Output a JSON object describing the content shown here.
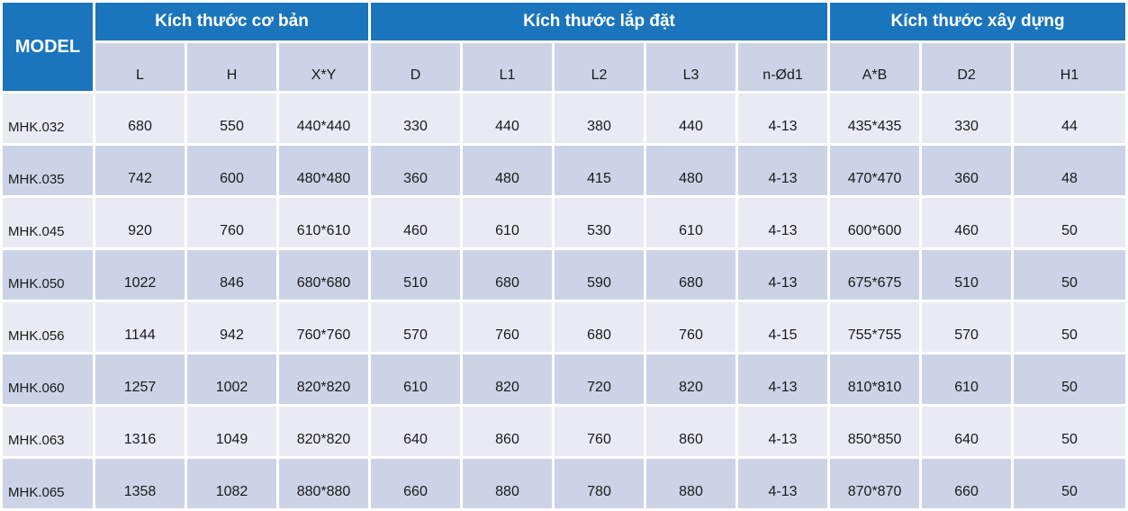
{
  "colors": {
    "header_blue": "#1b75bc",
    "band_light": "#e9ebf4",
    "band_dark": "#ccd3e6",
    "header_text": "#ffffff",
    "body_text": "#1a1a1a"
  },
  "table": {
    "model_header": "MODEL",
    "groups": [
      {
        "label": "Kích thước cơ bản",
        "columns": [
          "L",
          "H",
          "X*Y"
        ]
      },
      {
        "label": "Kích thước lắp đặt",
        "columns": [
          "D",
          "L1",
          "L2",
          "L3",
          "n-Ød1"
        ]
      },
      {
        "label": "Kích thước xây dựng",
        "columns": [
          "A*B",
          "D2",
          "H1"
        ]
      }
    ],
    "rows": [
      {
        "model": "MHK.032",
        "values": [
          "680",
          "550",
          "440*440",
          "330",
          "440",
          "380",
          "440",
          "4-13",
          "435*435",
          "330",
          "44"
        ]
      },
      {
        "model": "MHK.035",
        "values": [
          "742",
          "600",
          "480*480",
          "360",
          "480",
          "415",
          "480",
          "4-13",
          "470*470",
          "360",
          "48"
        ]
      },
      {
        "model": "MHK.045",
        "values": [
          "920",
          "760",
          "610*610",
          "460",
          "610",
          "530",
          "610",
          "4-13",
          "600*600",
          "460",
          "50"
        ]
      },
      {
        "model": "MHK.050",
        "values": [
          "1022",
          "846",
          "680*680",
          "510",
          "680",
          "590",
          "680",
          "4-13",
          "675*675",
          "510",
          "50"
        ]
      },
      {
        "model": "MHK.056",
        "values": [
          "1144",
          "942",
          "760*760",
          "570",
          "760",
          "680",
          "760",
          "4-15",
          "755*755",
          "570",
          "50"
        ]
      },
      {
        "model": "MHK.060",
        "values": [
          "1257",
          "1002",
          "820*820",
          "610",
          "820",
          "720",
          "820",
          "4-13",
          "810*810",
          "610",
          "50"
        ]
      },
      {
        "model": "MHK.063",
        "values": [
          "1316",
          "1049",
          "820*820",
          "640",
          "860",
          "760",
          "860",
          "4-13",
          "850*850",
          "640",
          "50"
        ]
      },
      {
        "model": "MHK.065",
        "values": [
          "1358",
          "1082",
          "880*880",
          "660",
          "880",
          "780",
          "880",
          "4-13",
          "870*870",
          "660",
          "50"
        ]
      }
    ]
  }
}
